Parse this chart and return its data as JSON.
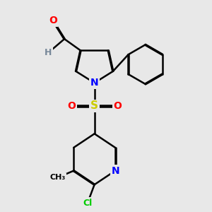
{
  "background_color": "#e8e8e8",
  "bond_color": "#000000",
  "atom_colors": {
    "O": "#ff0000",
    "N": "#0000ff",
    "S": "#cccc00",
    "Cl": "#00cc00",
    "H": "#778899",
    "C": "#000000"
  },
  "figsize": [
    3.0,
    3.0
  ],
  "dpi": 100
}
